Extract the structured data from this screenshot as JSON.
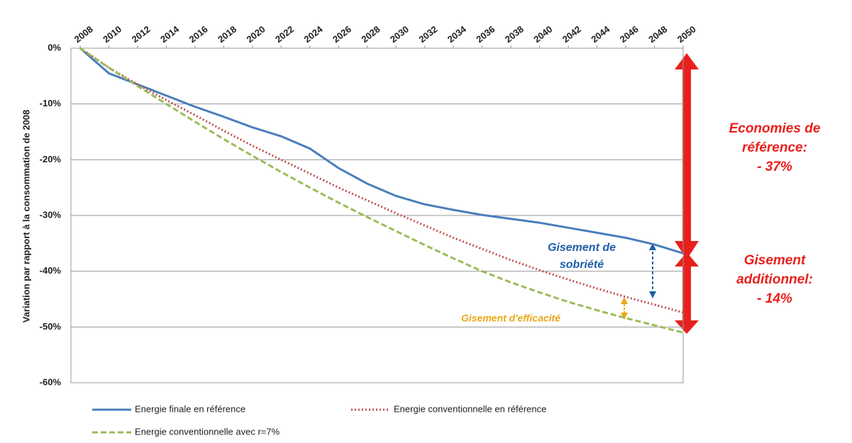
{
  "chart_data": {
    "type": "line",
    "y_label": "Variation par rapport à la consommation de 2008",
    "x": [
      2008,
      2010,
      2012,
      2014,
      2016,
      2018,
      2020,
      2022,
      2024,
      2026,
      2028,
      2030,
      2032,
      2034,
      2036,
      2038,
      2040,
      2042,
      2044,
      2046,
      2048,
      2050
    ],
    "xlim": [
      2008,
      2050
    ],
    "xticks": [
      2008,
      2010,
      2012,
      2014,
      2016,
      2018,
      2020,
      2022,
      2024,
      2026,
      2028,
      2030,
      2032,
      2034,
      2036,
      2038,
      2040,
      2042,
      2044,
      2046,
      2048,
      2050
    ],
    "ylim": [
      -60,
      0
    ],
    "yticks": [
      {
        "value": 0,
        "label": "0%"
      },
      {
        "value": -10,
        "label": "-10%"
      },
      {
        "value": -20,
        "label": "-20%"
      },
      {
        "value": -30,
        "label": "-30%"
      },
      {
        "value": -40,
        "label": "-40%"
      },
      {
        "value": -50,
        "label": "-50%"
      },
      {
        "value": -60,
        "label": "-60%"
      }
    ],
    "grid": true,
    "series": [
      {
        "name": "Energie finale en référence",
        "color": "#4a7ebb",
        "style": "solid",
        "values": [
          0,
          -4.5,
          -6.5,
          -8.5,
          -10.5,
          -12.3,
          -14.2,
          -15.8,
          -18,
          -21.5,
          -24.3,
          -26.5,
          -28,
          -29,
          -29.9,
          -30.6,
          -31.3,
          -32.2,
          -33.1,
          -34,
          -35.2,
          -36.8
        ]
      },
      {
        "name": "Energie conventionnelle en référence",
        "color": "#c0504d",
        "style": "dotted",
        "values": [
          0,
          -3.5,
          -6.5,
          -9.3,
          -12,
          -14.8,
          -17.5,
          -20,
          -22.5,
          -25,
          -27.3,
          -29.6,
          -31.8,
          -34,
          -36,
          -38,
          -39.8,
          -41.5,
          -43.1,
          -44.6,
          -46,
          -47.4
        ]
      },
      {
        "name": "Energie conventionnelle avec r=7%",
        "color": "#9bbb59",
        "style": "dashed",
        "values": [
          0,
          -3.5,
          -6.8,
          -10,
          -13.2,
          -16.3,
          -19.3,
          -22.2,
          -25,
          -27.7,
          -30.3,
          -32.8,
          -35.3,
          -37.7,
          -40,
          -42,
          -43.8,
          -45.5,
          -47,
          -48.4,
          -49.7,
          -51
        ]
      }
    ],
    "annotations": [
      {
        "lines": [
          "Gisement de",
          "sobriété"
        ],
        "color": "#1f5fa8"
      },
      {
        "lines": [
          "Gisement d'efficacité"
        ],
        "color": "#e8a818"
      },
      {
        "lines": [
          "Economies de",
          "référence:",
          "- 37%"
        ],
        "color": "#e8201c"
      },
      {
        "lines": [
          "Gisement",
          "additionnel:",
          "- 14%"
        ],
        "color": "#e8201c"
      }
    ]
  }
}
